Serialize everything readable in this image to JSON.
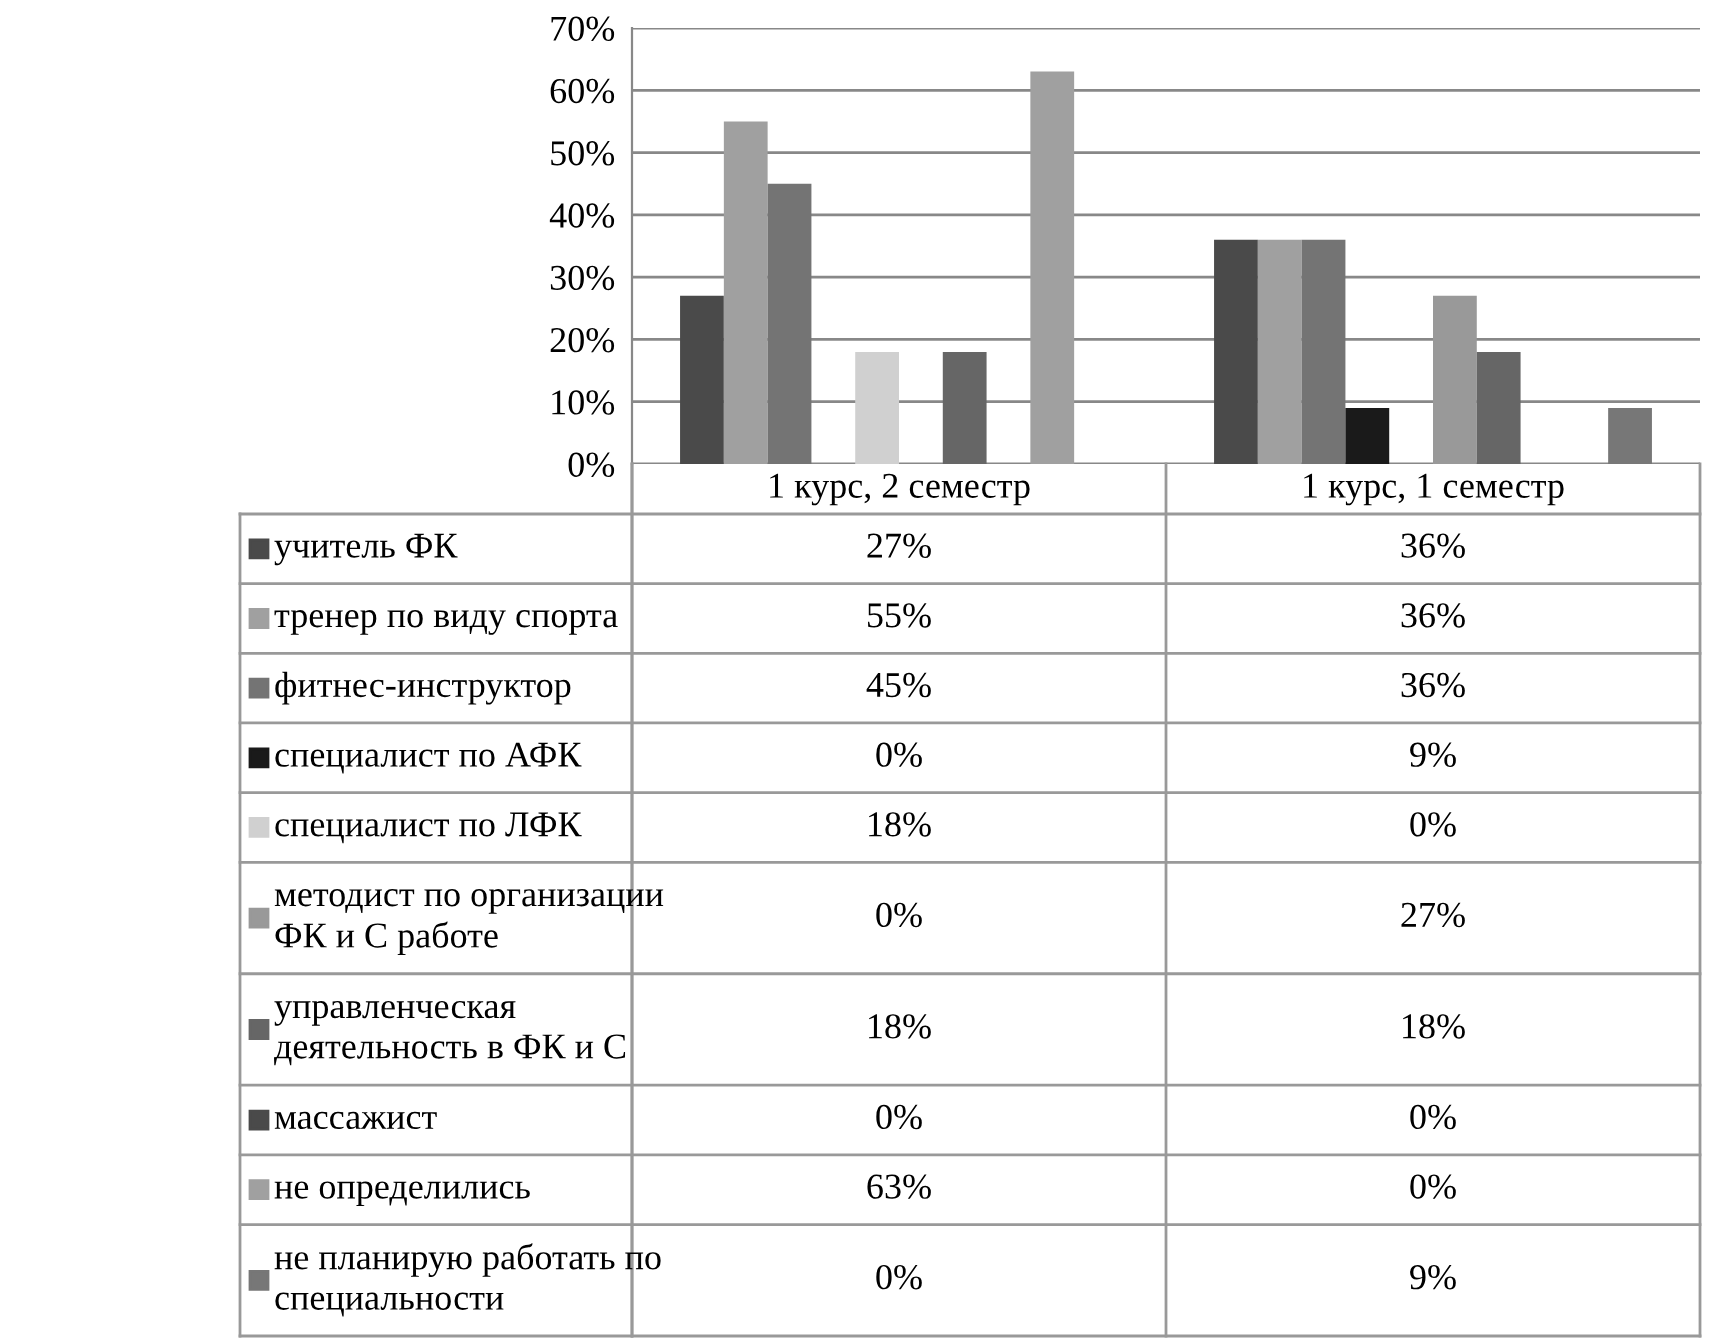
{
  "chart_data": {
    "type": "bar",
    "categories": [
      "1 курс, 2 семестр",
      "1 курс, 1 семестр"
    ],
    "ylim": [
      0,
      70
    ],
    "yticks": [
      {
        "value": 0,
        "label": "0%"
      },
      {
        "value": 10,
        "label": "10%"
      },
      {
        "value": 20,
        "label": "20%"
      },
      {
        "value": 30,
        "label": "30%"
      },
      {
        "value": 40,
        "label": "40%"
      },
      {
        "value": 50,
        "label": "50%"
      },
      {
        "value": 60,
        "label": "60%"
      },
      {
        "value": 70,
        "label": "70%"
      }
    ],
    "grid": "y",
    "legend": "bottom",
    "series": [
      {
        "name": "учитель ФК",
        "color": "#4a4a4a",
        "values": [
          27,
          36
        ],
        "value_labels": [
          "27%",
          "36%"
        ]
      },
      {
        "name": "тренер по виду спорта",
        "color": "#a0a0a0",
        "values": [
          55,
          36
        ],
        "value_labels": [
          "55%",
          "36%"
        ]
      },
      {
        "name": "фитнес-инструктор",
        "color": "#747474",
        "values": [
          45,
          36
        ],
        "value_labels": [
          "45%",
          "36%"
        ]
      },
      {
        "name": "специалист по АФК",
        "color": "#1a1a1a",
        "values": [
          0,
          9
        ],
        "value_labels": [
          "0%",
          "9%"
        ]
      },
      {
        "name": "специалист по ЛФК",
        "color": "#d0d0d0",
        "values": [
          18,
          0
        ],
        "value_labels": [
          "18%",
          "0%"
        ]
      },
      {
        "name": "методист по организации\nФК и С работе",
        "color": "#999999",
        "values": [
          0,
          27
        ],
        "value_labels": [
          "0%",
          "27%"
        ]
      },
      {
        "name": "управленческая\nдеятельность в ФК и С",
        "color": "#666666",
        "values": [
          18,
          18
        ],
        "value_labels": [
          "18%",
          "18%"
        ]
      },
      {
        "name": "массажист",
        "color": "#4a4a4a",
        "values": [
          0,
          0
        ],
        "value_labels": [
          "0%",
          "0%"
        ]
      },
      {
        "name": "не определились",
        "color": "#a0a0a0",
        "values": [
          63,
          0
        ],
        "value_labels": [
          "63%",
          "0%"
        ]
      },
      {
        "name": "не планирую работать по\nспециальности",
        "color": "#777777",
        "values": [
          0,
          9
        ],
        "value_labels": [
          "0%",
          "9%"
        ]
      }
    ]
  }
}
